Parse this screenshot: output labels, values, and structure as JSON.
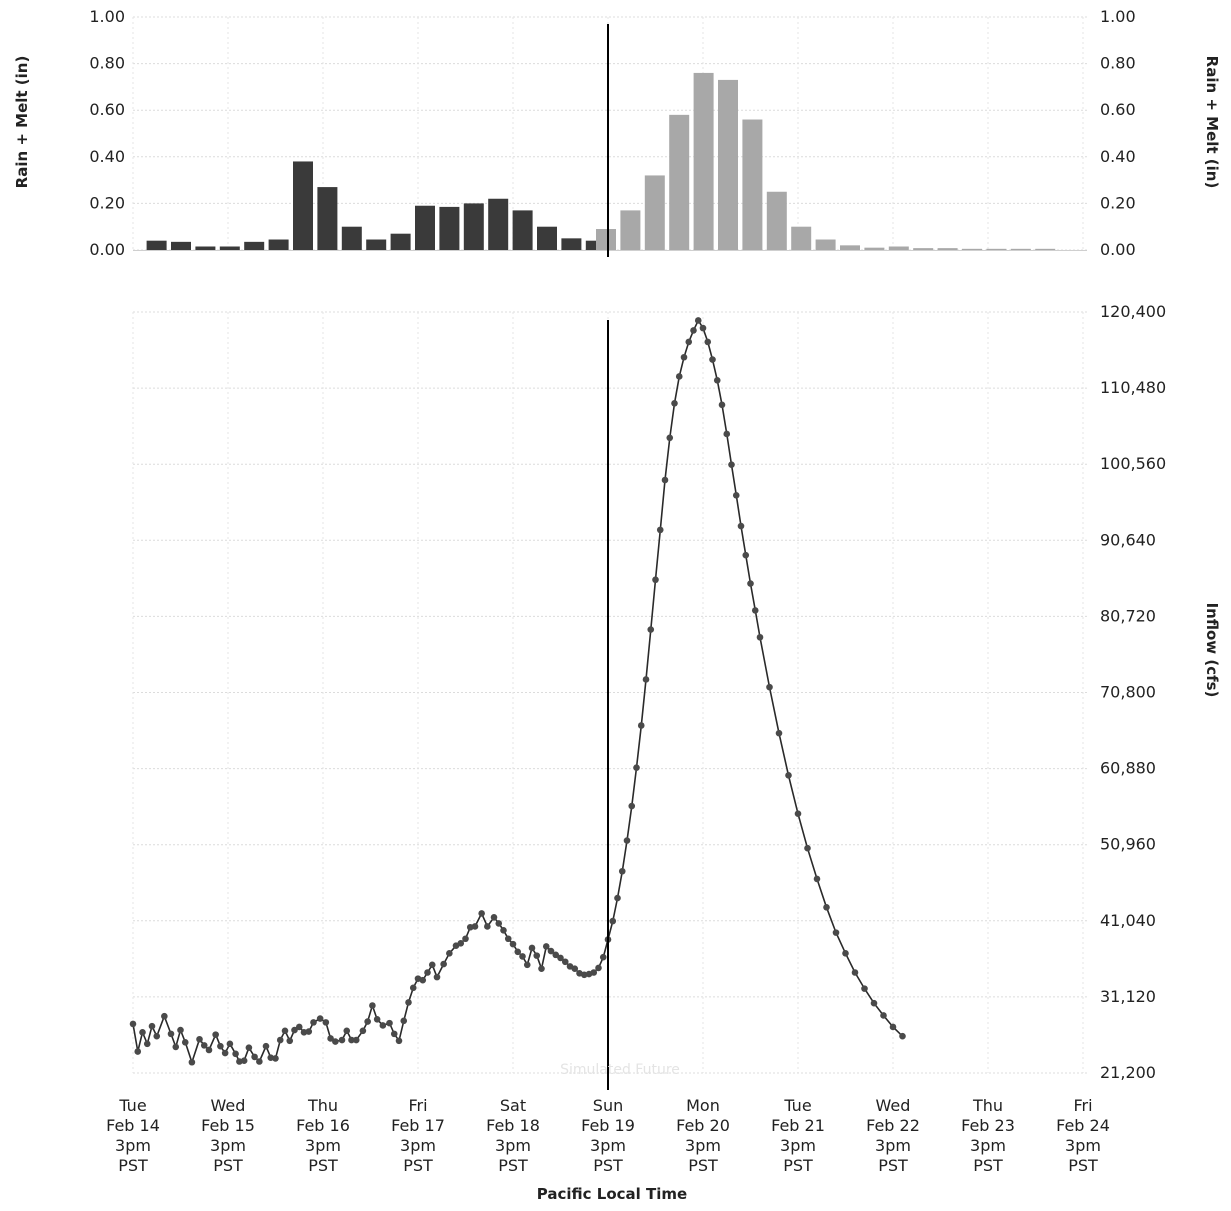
{
  "chart_data": [
    {
      "type": "bar",
      "ylabel_left": "Rain + Melt (in)",
      "ylabel_right": "Rain + Melt (in)",
      "ylim": [
        0,
        1.0
      ],
      "yticks": [
        "0.00",
        "0.20",
        "0.40",
        "0.60",
        "0.80",
        "1.00"
      ],
      "grid": true,
      "observed_color": "#3a3a3a",
      "forecast_color": "#a8a8a8",
      "series": [
        {
          "values": [
            0.04,
            0.035,
            0.015,
            0.015,
            0.035,
            0.045,
            0.38,
            0.27,
            0.1,
            0.045,
            0.07,
            0.19,
            0.185,
            0.2,
            0.22,
            0.17,
            0.1,
            0.05,
            0.04
          ]
        },
        {
          "values": [
            0.09,
            0.17,
            0.32,
            0.58,
            0.76,
            0.73,
            0.56,
            0.25,
            0.1,
            0.045,
            0.02,
            0.01,
            0.015,
            0.008,
            0.008,
            0.005,
            0.005,
            0.005,
            0.005
          ]
        }
      ]
    },
    {
      "type": "line",
      "ylabel": "Inflow (cfs)",
      "xlabel": "Pacific Local Time",
      "ylim": [
        21200,
        120400
      ],
      "yticks": [
        "21,200",
        "31,120",
        "41,040",
        "50,960",
        "60,880",
        "70,800",
        "80,720",
        "90,640",
        "100,560",
        "110,480",
        "120,400"
      ],
      "grid": true,
      "now_marker": "Sun Feb 19 3pm PST",
      "watermark": "Simulated Future",
      "xticks": [
        {
          "day": "Tue",
          "date": "Feb 14",
          "time": "3pm",
          "tz": "PST"
        },
        {
          "day": "Wed",
          "date": "Feb 15",
          "time": "3pm",
          "tz": "PST"
        },
        {
          "day": "Thu",
          "date": "Feb 16",
          "time": "3pm",
          "tz": "PST"
        },
        {
          "day": "Fri",
          "date": "Feb 17",
          "time": "3pm",
          "tz": "PST"
        },
        {
          "day": "Sat",
          "date": "Feb 18",
          "time": "3pm",
          "tz": "PST"
        },
        {
          "day": "Sun",
          "date": "Feb 19",
          "time": "3pm",
          "tz": "PST"
        },
        {
          "day": "Mon",
          "date": "Feb 20",
          "time": "3pm",
          "tz": "PST"
        },
        {
          "day": "Tue",
          "date": "Feb 21",
          "time": "3pm",
          "tz": "PST"
        },
        {
          "day": "Wed",
          "date": "Feb 22",
          "time": "3pm",
          "tz": "PST"
        },
        {
          "day": "Thu",
          "date": "Feb 23",
          "time": "3pm",
          "tz": "PST"
        },
        {
          "day": "Fri",
          "date": "Feb 24",
          "time": "3pm",
          "tz": "PST"
        }
      ],
      "series": [
        {
          "x_days_anchor": "Feb 14 3pm PST",
          "color": "#2a2a2a",
          "points": [
            [
              0.0,
              27600
            ],
            [
              0.05,
              24000
            ],
            [
              0.1,
              26500
            ],
            [
              0.15,
              25000
            ],
            [
              0.2,
              27300
            ],
            [
              0.25,
              26000
            ],
            [
              0.33,
              28600
            ],
            [
              0.4,
              26300
            ],
            [
              0.45,
              24600
            ],
            [
              0.5,
              26800
            ],
            [
              0.55,
              25200
            ],
            [
              0.62,
              22600
            ],
            [
              0.7,
              25600
            ],
            [
              0.75,
              24800
            ],
            [
              0.8,
              24200
            ],
            [
              0.87,
              26200
            ],
            [
              0.92,
              24700
            ],
            [
              0.97,
              23800
            ],
            [
              1.02,
              25000
            ],
            [
              1.08,
              23700
            ],
            [
              1.12,
              22700
            ],
            [
              1.17,
              22800
            ],
            [
              1.22,
              24500
            ],
            [
              1.28,
              23300
            ],
            [
              1.33,
              22700
            ],
            [
              1.4,
              24700
            ],
            [
              1.45,
              23200
            ],
            [
              1.5,
              23100
            ],
            [
              1.55,
              25500
            ],
            [
              1.6,
              26700
            ],
            [
              1.65,
              25400
            ],
            [
              1.7,
              26800
            ],
            [
              1.75,
              27200
            ],
            [
              1.8,
              26500
            ],
            [
              1.85,
              26600
            ],
            [
              1.9,
              27800
            ],
            [
              1.97,
              28300
            ],
            [
              2.03,
              27800
            ],
            [
              2.08,
              25700
            ],
            [
              2.13,
              25300
            ],
            [
              2.2,
              25500
            ],
            [
              2.25,
              26700
            ],
            [
              2.3,
              25500
            ],
            [
              2.35,
              25500
            ],
            [
              2.42,
              26700
            ],
            [
              2.47,
              27900
            ],
            [
              2.52,
              30000
            ],
            [
              2.57,
              28200
            ],
            [
              2.63,
              27400
            ],
            [
              2.7,
              27700
            ],
            [
              2.75,
              26300
            ],
            [
              2.8,
              25400
            ],
            [
              2.85,
              28000
            ],
            [
              2.9,
              30400
            ],
            [
              2.95,
              32300
            ],
            [
              3.0,
              33500
            ],
            [
              3.05,
              33300
            ],
            [
              3.1,
              34300
            ],
            [
              3.15,
              35300
            ],
            [
              3.2,
              33700
            ],
            [
              3.27,
              35400
            ],
            [
              3.33,
              36800
            ],
            [
              3.4,
              37800
            ],
            [
              3.45,
              38100
            ],
            [
              3.5,
              38700
            ],
            [
              3.55,
              40200
            ],
            [
              3.6,
              40300
            ],
            [
              3.67,
              42000
            ],
            [
              3.73,
              40300
            ],
            [
              3.8,
              41500
            ],
            [
              3.85,
              40700
            ],
            [
              3.9,
              39800
            ],
            [
              3.95,
              38700
            ],
            [
              4.0,
              38000
            ],
            [
              4.05,
              37000
            ],
            [
              4.1,
              36400
            ],
            [
              4.15,
              35300
            ],
            [
              4.2,
              37500
            ],
            [
              4.25,
              36500
            ],
            [
              4.3,
              34800
            ],
            [
              4.35,
              37700
            ],
            [
              4.4,
              37100
            ],
            [
              4.45,
              36600
            ],
            [
              4.5,
              36200
            ],
            [
              4.55,
              35700
            ],
            [
              4.6,
              35100
            ],
            [
              4.65,
              34800
            ],
            [
              4.7,
              34200
            ],
            [
              4.75,
              34000
            ],
            [
              4.8,
              34100
            ],
            [
              4.85,
              34300
            ],
            [
              4.9,
              34900
            ],
            [
              4.95,
              36300
            ],
            [
              5.0,
              38600
            ],
            [
              5.05,
              41000
            ],
            [
              5.1,
              44000
            ],
            [
              5.15,
              47500
            ],
            [
              5.2,
              51500
            ],
            [
              5.25,
              56000
            ],
            [
              5.3,
              61000
            ],
            [
              5.35,
              66500
            ],
            [
              5.4,
              72500
            ],
            [
              5.45,
              79000
            ],
            [
              5.5,
              85500
            ],
            [
              5.55,
              92000
            ],
            [
              5.6,
              98500
            ],
            [
              5.65,
              104000
            ],
            [
              5.7,
              108500
            ],
            [
              5.75,
              112000
            ],
            [
              5.8,
              114500
            ],
            [
              5.85,
              116500
            ],
            [
              5.9,
              118000
            ],
            [
              5.95,
              119300
            ],
            [
              6.0,
              118300
            ],
            [
              6.05,
              116500
            ],
            [
              6.1,
              114200
            ],
            [
              6.15,
              111500
            ],
            [
              6.2,
              108300
            ],
            [
              6.25,
              104500
            ],
            [
              6.3,
              100500
            ],
            [
              6.35,
              96500
            ],
            [
              6.4,
              92500
            ],
            [
              6.45,
              88700
            ],
            [
              6.5,
              85000
            ],
            [
              6.55,
              81500
            ],
            [
              6.6,
              78000
            ],
            [
              6.7,
              71500
            ],
            [
              6.8,
              65500
            ],
            [
              6.9,
              60000
            ],
            [
              7.0,
              55000
            ],
            [
              7.1,
              50500
            ],
            [
              7.2,
              46500
            ],
            [
              7.3,
              42800
            ],
            [
              7.4,
              39500
            ],
            [
              7.5,
              36800
            ],
            [
              7.6,
              34300
            ],
            [
              7.7,
              32200
            ],
            [
              7.8,
              30300
            ],
            [
              7.9,
              28700
            ],
            [
              8.0,
              27200
            ],
            [
              8.1,
              26000
            ]
          ]
        }
      ]
    }
  ]
}
